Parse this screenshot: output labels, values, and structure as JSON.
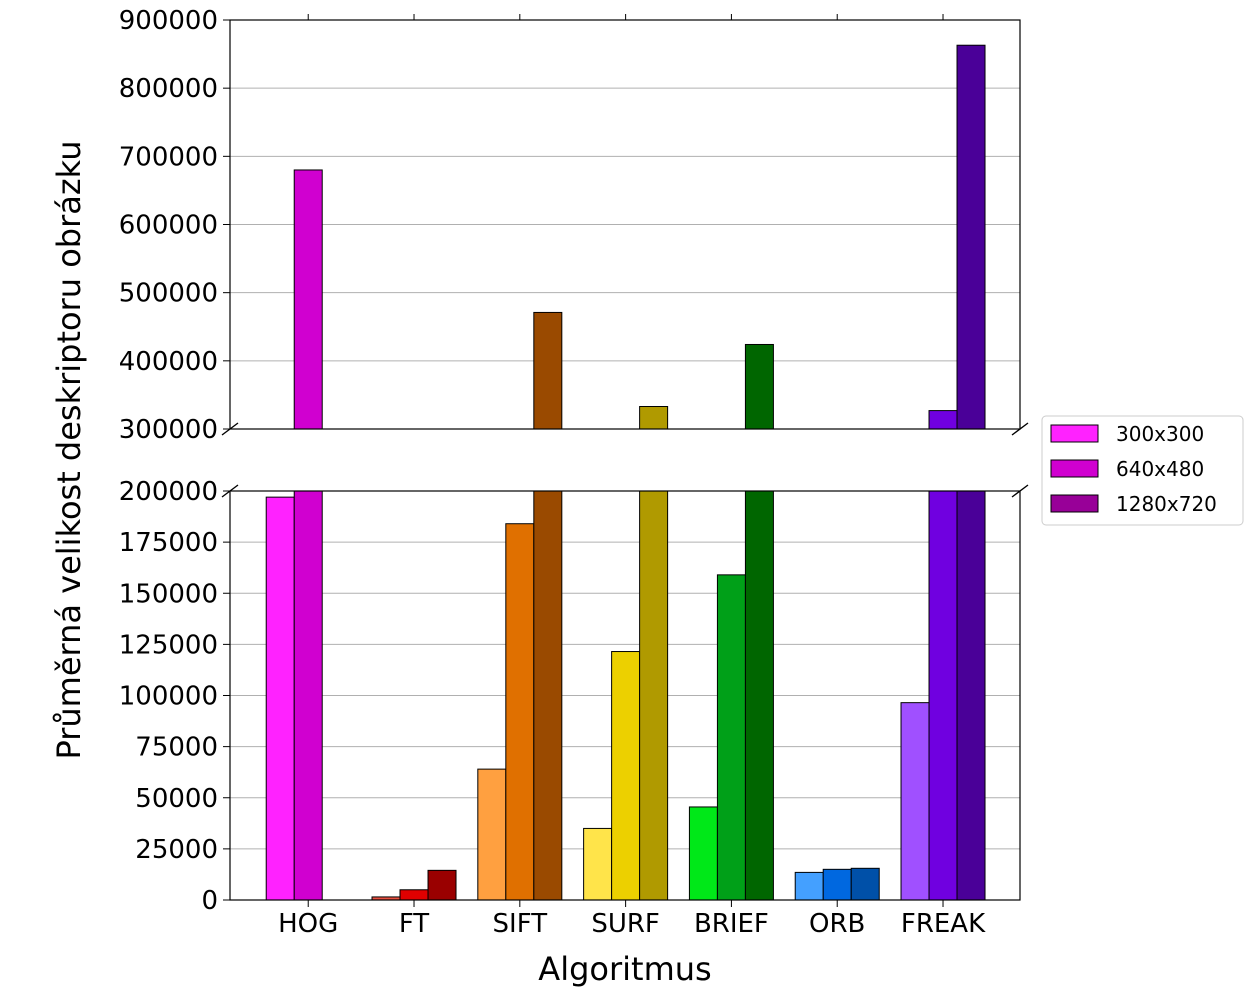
{
  "chart_data": {
    "type": "bar",
    "broken_y_axis": true,
    "xlabel": "Algoritmus",
    "ylabel": "Průměrná velikost deskriptoru obrázku",
    "categories": [
      "HOG",
      "FT",
      "SIFT",
      "SURF",
      "BRIEF",
      "ORB",
      "FREAK"
    ],
    "series": [
      {
        "name": "300x300",
        "values": [
          197000,
          1500,
          64000,
          35000,
          45500,
          13500,
          96500
        ]
      },
      {
        "name": "640x480",
        "values": [
          680000,
          5000,
          184000,
          121500,
          159000,
          15000,
          327000
        ]
      },
      {
        "name": "1280x720",
        "values": [
          null,
          14500,
          471000,
          333000,
          424000,
          15500,
          863000
        ]
      }
    ],
    "bar_colors": [
      [
        "#ff22ff",
        "#d000d0",
        "#980098"
      ],
      [
        "#e85040",
        "#e00000",
        "#9a0000"
      ],
      [
        "#ffa040",
        "#e07000",
        "#9a4a00"
      ],
      [
        "#ffe44a",
        "#ecd000",
        "#b09a00"
      ],
      [
        "#00e818",
        "#00a018",
        "#006600"
      ],
      [
        "#44a0ff",
        "#0068e0",
        "#0050a8"
      ],
      [
        "#a050ff",
        "#7000e0",
        "#4a0098"
      ]
    ],
    "legend_colors": [
      "#ff22ff",
      "#d000d0",
      "#980098"
    ],
    "legend_position": "right",
    "upper_panel": {
      "ylim": [
        300000,
        900000
      ],
      "yticks": [
        "300000",
        "400000",
        "500000",
        "600000",
        "700000",
        "800000",
        "900000"
      ]
    },
    "lower_panel": {
      "ylim": [
        0,
        200000
      ],
      "yticks": [
        "0",
        "25000",
        "50000",
        "75000",
        "100000",
        "125000",
        "150000",
        "175000",
        "200000"
      ]
    },
    "grid": "y"
  }
}
